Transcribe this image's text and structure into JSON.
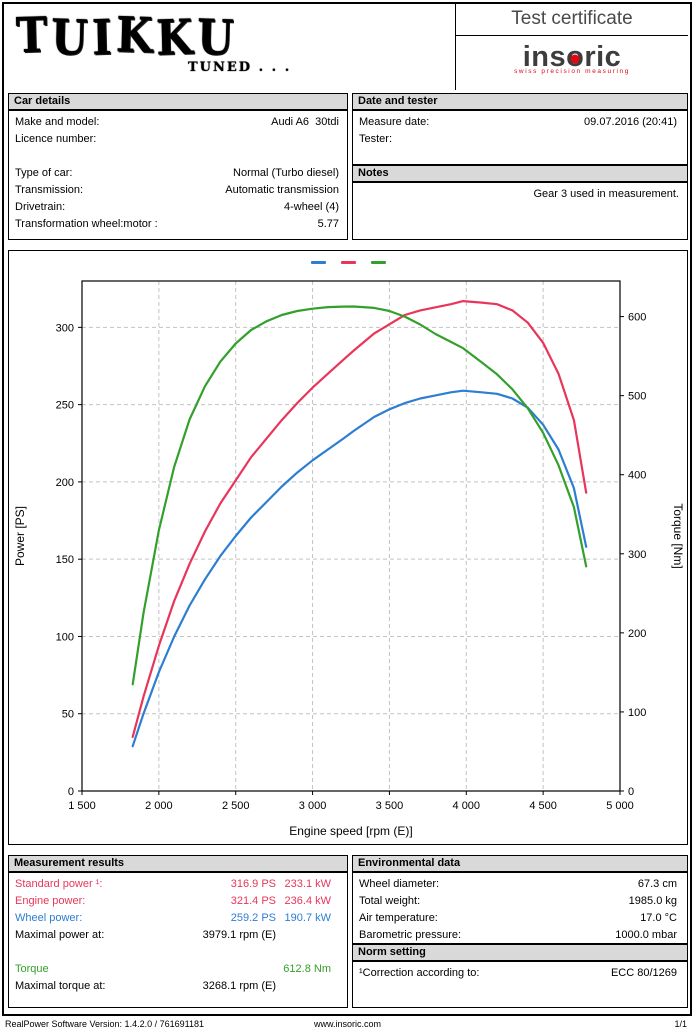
{
  "brand": {
    "name": "TUIKKU",
    "tagline": "TUNED . . ."
  },
  "header": {
    "title": "Test certificate",
    "insoric": {
      "pre": "ins",
      "o": "o",
      "post": "ric",
      "tagline": "swiss precision measuring",
      "dot_color": "#e30613"
    }
  },
  "car_details": {
    "header": "Car details",
    "rows": [
      {
        "label": "Make and model:",
        "value": "Audi A6  30tdi"
      },
      {
        "label": "Licence number:",
        "value": ""
      },
      {
        "label": "",
        "value": ""
      },
      {
        "label": "Type of car:",
        "value": "Normal (Turbo diesel)"
      },
      {
        "label": "Transmission:",
        "value": "Automatic transmission"
      },
      {
        "label": "Drivetrain:",
        "value": "4-wheel (4)"
      },
      {
        "label": "Transformation wheel:motor :",
        "value": "5.77"
      }
    ]
  },
  "date_tester": {
    "header": "Date and tester",
    "rows": [
      {
        "label": "Measure date:",
        "value": "09.07.2016 (20:41)"
      },
      {
        "label": "Tester:",
        "value": ""
      }
    ]
  },
  "notes": {
    "header": "Notes",
    "text": "Gear 3 used in measurement."
  },
  "measurement": {
    "header": "Measurement results",
    "rows": [
      {
        "label": "Standard power ¹:",
        "value1": "316.9 PS",
        "value2": "233.1 kW",
        "color": "#e8365a"
      },
      {
        "label": "Engine power:",
        "value1": "321.4 PS",
        "value2": "236.4 kW",
        "color": "#e8365a"
      },
      {
        "label": "Wheel power:",
        "value1": "259.2 PS",
        "value2": "190.7 kW",
        "color": "#2d7dd2"
      },
      {
        "label": "Maximal power at:",
        "value1": "3979.1 rpm (E)",
        "value2": "",
        "color": "#000000"
      },
      {
        "label": "",
        "value1": "",
        "value2": "",
        "color": "#000000"
      },
      {
        "label": "Torque",
        "value1": "",
        "value2": "612.8 Nm",
        "color": "#33a02c"
      },
      {
        "label": "Maximal torque at:",
        "value1": "3268.1 rpm (E)",
        "value2": "",
        "color": "#000000"
      }
    ]
  },
  "environmental": {
    "header": "Environmental data",
    "rows": [
      {
        "label": "Wheel diameter:",
        "value": "67.3 cm"
      },
      {
        "label": "Total weight:",
        "value": "1985.0 kg"
      },
      {
        "label": "Air temperature:",
        "value": "17.0 °C"
      },
      {
        "label": "Barometric pressure:",
        "value": "1000.0 mbar"
      }
    ]
  },
  "norm": {
    "header": "Norm setting",
    "rows": [
      {
        "label": "¹Correction according to:",
        "value": "ECC 80/1269"
      }
    ]
  },
  "footer": {
    "left": "RealPower Software Version: 1.4.2.0 / 761691181",
    "center": "www.insoric.com",
    "right": "1/1"
  },
  "chart_data": {
    "type": "line",
    "x_label": "Engine speed [rpm (E)]",
    "x_range": [
      1500,
      5000
    ],
    "x_ticks": [
      {
        "v": 1500,
        "label": "1 500"
      },
      {
        "v": 2000,
        "label": "2 000"
      },
      {
        "v": 2500,
        "label": "2 500"
      },
      {
        "v": 3000,
        "label": "3 000"
      },
      {
        "v": 3500,
        "label": "3 500"
      },
      {
        "v": 4000,
        "label": "4 000"
      },
      {
        "v": 4500,
        "label": "4 500"
      },
      {
        "v": 5000,
        "label": "5 000"
      }
    ],
    "power_axis": {
      "label": "Power [PS]",
      "max": 330,
      "ticks": [
        0,
        50,
        100,
        150,
        200,
        250,
        300
      ]
    },
    "torque_axis": {
      "label": "Torque [Nm]",
      "max": 645,
      "ticks": [
        0,
        100,
        200,
        300,
        400,
        500,
        600
      ]
    },
    "grid": true,
    "legend_position": "top-center",
    "x": [
      1830,
      1900,
      2000,
      2100,
      2200,
      2300,
      2400,
      2500,
      2600,
      2700,
      2800,
      2900,
      3000,
      3100,
      3200,
      3268,
      3400,
      3500,
      3600,
      3700,
      3800,
      3900,
      3979,
      4100,
      4200,
      4300,
      4400,
      4500,
      4600,
      4700,
      4780
    ],
    "series": [
      {
        "name": "Wheel power",
        "axis": "power",
        "color": "#2d7dd2",
        "values": [
          29,
          50,
          77,
          100,
          120,
          137,
          152,
          165,
          177,
          187,
          197,
          206,
          214,
          221,
          228,
          233,
          242,
          247,
          251,
          254,
          256,
          258,
          259,
          258,
          257,
          254,
          248,
          237,
          221,
          196,
          158
        ]
      },
      {
        "name": "Engine power",
        "axis": "power",
        "color": "#e8365a",
        "values": [
          35,
          61,
          94,
          123,
          147,
          168,
          186,
          201,
          216,
          228,
          240,
          251,
          261,
          270,
          279,
          285,
          296,
          302,
          308,
          311,
          313,
          315,
          317,
          316,
          315,
          311,
          303,
          290,
          270,
          240,
          193
        ]
      },
      {
        "name": "Torque",
        "axis": "torque",
        "color": "#33a02c",
        "values": [
          135,
          225,
          330,
          410,
          470,
          512,
          543,
          566,
          583,
          594,
          602,
          607,
          610,
          612,
          612.6,
          612.8,
          611,
          607,
          600,
          590,
          578,
          568,
          560,
          542,
          527,
          508,
          484,
          453,
          412,
          359,
          284
        ]
      }
    ]
  }
}
